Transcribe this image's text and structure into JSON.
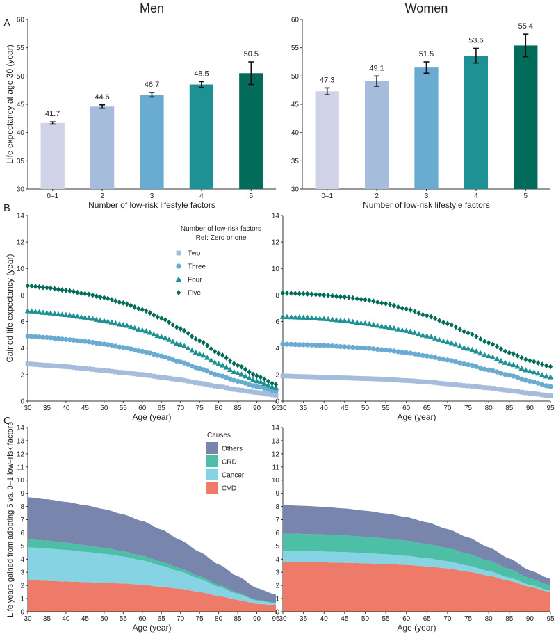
{
  "panel_labels": [
    "A",
    "B",
    "C"
  ],
  "colors": {
    "bars": [
      "#d0d2e8",
      "#a6bcdd",
      "#6aabd2",
      "#1e9195",
      "#036b59"
    ],
    "series": [
      "#a6bcdd",
      "#6aabd2",
      "#1e9195",
      "#036b59"
    ],
    "causes": [
      "#7886ad",
      "#4dbfa7",
      "#86d3e3",
      "#ee7b6a"
    ]
  },
  "chart_data": [
    {
      "type": "bar",
      "id": "A-men",
      "title": "Men",
      "xlabel": "Number of low-risk lifestyle factors",
      "ylabel": "Life expectancy at age 30 (year)",
      "categories": [
        "0–1",
        "2",
        "3",
        "4",
        "5"
      ],
      "values": [
        41.7,
        44.6,
        46.7,
        48.5,
        50.5
      ],
      "value_labels": [
        "41.7",
        "44.6",
        "46.7",
        "48.5",
        "50.5"
      ],
      "ci_low": [
        41.5,
        44.3,
        46.3,
        48.0,
        48.5
      ],
      "ci_high": [
        41.9,
        44.9,
        47.1,
        49.0,
        52.5
      ],
      "ylim": [
        30,
        60
      ],
      "yticks": [
        30,
        35,
        40,
        45,
        50,
        55,
        60
      ]
    },
    {
      "type": "bar",
      "id": "A-women",
      "title": "Women",
      "xlabel": "Number of low-risk lifestyle factors",
      "ylabel": "",
      "categories": [
        "0–1",
        "2",
        "3",
        "4",
        "5"
      ],
      "values": [
        47.3,
        49.1,
        51.5,
        53.6,
        55.4
      ],
      "value_labels": [
        "47.3",
        "49.1",
        "51.5",
        "53.6",
        "55.4"
      ],
      "ci_low": [
        46.7,
        48.2,
        50.5,
        52.3,
        53.4
      ],
      "ci_high": [
        47.9,
        50.0,
        52.5,
        54.9,
        57.4
      ],
      "ylim": [
        30,
        60
      ],
      "yticks": [
        30,
        35,
        40,
        45,
        50,
        55,
        60
      ]
    },
    {
      "type": "scatter",
      "id": "B-men",
      "title": "",
      "xlabel": "Age (year)",
      "ylabel": "Gained life expectancy (year)",
      "xlim": [
        30,
        95
      ],
      "ylim": [
        0,
        14
      ],
      "xticks": [
        30,
        35,
        40,
        45,
        50,
        55,
        60,
        65,
        70,
        75,
        80,
        85,
        90,
        95
      ],
      "yticks": [
        0,
        2,
        4,
        6,
        8,
        10,
        12,
        14
      ],
      "legend_title": "Number of low-risk factors",
      "legend_subtitle": "Ref: Zero or one",
      "x": [
        30,
        35,
        40,
        45,
        50,
        55,
        60,
        65,
        70,
        75,
        80,
        85,
        90,
        95
      ],
      "series": [
        {
          "name": "Two",
          "marker": "square",
          "values": [
            2.8,
            2.7,
            2.6,
            2.45,
            2.3,
            2.15,
            2.0,
            1.8,
            1.6,
            1.35,
            1.1,
            0.85,
            0.65,
            0.45
          ]
        },
        {
          "name": "Three",
          "marker": "circle",
          "values": [
            4.9,
            4.8,
            4.65,
            4.5,
            4.3,
            4.05,
            3.75,
            3.4,
            2.95,
            2.45,
            1.95,
            1.5,
            1.1,
            0.75
          ]
        },
        {
          "name": "Four",
          "marker": "triangle",
          "values": [
            6.8,
            6.65,
            6.5,
            6.3,
            6.05,
            5.75,
            5.35,
            4.85,
            4.25,
            3.55,
            2.8,
            2.1,
            1.5,
            1.0
          ]
        },
        {
          "name": "Five",
          "marker": "diamond",
          "values": [
            8.7,
            8.55,
            8.35,
            8.1,
            7.8,
            7.4,
            6.9,
            6.25,
            5.45,
            4.55,
            3.6,
            2.7,
            1.9,
            1.25
          ]
        }
      ]
    },
    {
      "type": "scatter",
      "id": "B-women",
      "title": "",
      "xlabel": "Age (year)",
      "ylabel": "",
      "xlim": [
        30,
        95
      ],
      "ylim": [
        0,
        14
      ],
      "xticks": [
        30,
        35,
        40,
        45,
        50,
        55,
        60,
        65,
        70,
        75,
        80,
        85,
        90,
        95
      ],
      "yticks": [
        0,
        2,
        4,
        6,
        8,
        10,
        12,
        14
      ],
      "x": [
        30,
        35,
        40,
        45,
        50,
        55,
        60,
        65,
        70,
        75,
        80,
        85,
        90,
        95
      ],
      "series": [
        {
          "name": "Two",
          "marker": "square",
          "values": [
            1.9,
            1.85,
            1.8,
            1.75,
            1.7,
            1.65,
            1.55,
            1.45,
            1.3,
            1.15,
            1.0,
            0.8,
            0.6,
            0.4
          ]
        },
        {
          "name": "Three",
          "marker": "circle",
          "values": [
            4.3,
            4.25,
            4.2,
            4.1,
            4.0,
            3.85,
            3.65,
            3.4,
            3.1,
            2.75,
            2.35,
            1.95,
            1.5,
            1.1
          ]
        },
        {
          "name": "Four",
          "marker": "triangle",
          "values": [
            6.35,
            6.3,
            6.2,
            6.05,
            5.85,
            5.6,
            5.3,
            4.9,
            4.45,
            3.95,
            3.4,
            2.8,
            2.25,
            1.8
          ]
        },
        {
          "name": "Five",
          "marker": "diamond",
          "values": [
            8.15,
            8.1,
            8.0,
            7.85,
            7.65,
            7.35,
            6.95,
            6.45,
            5.85,
            5.15,
            4.4,
            3.65,
            3.05,
            2.6
          ]
        }
      ]
    },
    {
      "type": "area",
      "id": "C-men",
      "title": "",
      "xlabel": "Age (year)",
      "ylabel": "Life years gained from adopting 5 vs. 0–1 low–risk factors",
      "xlim": [
        30,
        95
      ],
      "ylim": [
        0,
        14
      ],
      "xticks": [
        30,
        35,
        40,
        45,
        50,
        55,
        60,
        65,
        70,
        75,
        80,
        85,
        90,
        95
      ],
      "yticks": [
        0,
        1,
        2,
        3,
        4,
        5,
        6,
        7,
        8,
        9,
        10,
        11,
        12,
        13,
        14
      ],
      "legend_title": "Causes",
      "stacked": true,
      "x": [
        30,
        35,
        40,
        45,
        50,
        55,
        60,
        65,
        70,
        75,
        80,
        85,
        90,
        95
      ],
      "series": [
        {
          "name": "CVD",
          "values": [
            2.4,
            2.35,
            2.3,
            2.25,
            2.2,
            2.15,
            2.05,
            1.9,
            1.75,
            1.5,
            1.2,
            0.9,
            0.6,
            0.5
          ]
        },
        {
          "name": "Cancer",
          "values": [
            2.5,
            2.45,
            2.4,
            2.3,
            2.2,
            2.05,
            1.85,
            1.6,
            1.3,
            1.0,
            0.7,
            0.45,
            0.25,
            0.15
          ]
        },
        {
          "name": "CRD",
          "values": [
            0.6,
            0.6,
            0.55,
            0.5,
            0.45,
            0.4,
            0.35,
            0.3,
            0.25,
            0.2,
            0.15,
            0.1,
            0.05,
            0.05
          ]
        },
        {
          "name": "Others",
          "values": [
            3.2,
            3.15,
            3.1,
            3.05,
            2.95,
            2.8,
            2.65,
            2.45,
            2.15,
            1.85,
            1.55,
            1.25,
            0.9,
            0.6
          ]
        }
      ]
    },
    {
      "type": "area",
      "id": "C-women",
      "title": "",
      "xlabel": "Age (year)",
      "ylabel": "",
      "xlim": [
        30,
        95
      ],
      "ylim": [
        0,
        14
      ],
      "xticks": [
        30,
        35,
        40,
        45,
        50,
        55,
        60,
        65,
        70,
        75,
        80,
        85,
        90,
        95
      ],
      "yticks": [
        0,
        1,
        2,
        3,
        4,
        5,
        6,
        7,
        8,
        9,
        10,
        11,
        12,
        13,
        14
      ],
      "stacked": true,
      "x": [
        30,
        35,
        40,
        45,
        50,
        55,
        60,
        65,
        70,
        75,
        80,
        85,
        90,
        95
      ],
      "series": [
        {
          "name": "CVD",
          "values": [
            3.8,
            3.78,
            3.75,
            3.72,
            3.68,
            3.63,
            3.56,
            3.45,
            3.3,
            3.05,
            2.75,
            2.35,
            1.9,
            1.5
          ]
        },
        {
          "name": "Cancer",
          "values": [
            0.85,
            0.84,
            0.83,
            0.81,
            0.78,
            0.74,
            0.69,
            0.62,
            0.54,
            0.45,
            0.35,
            0.25,
            0.15,
            0.1
          ]
        },
        {
          "name": "CRD",
          "values": [
            1.3,
            1.3,
            1.29,
            1.27,
            1.24,
            1.2,
            1.15,
            1.08,
            1.0,
            0.9,
            0.78,
            0.65,
            0.5,
            0.4
          ]
        },
        {
          "name": "Others",
          "values": [
            2.15,
            2.13,
            2.1,
            2.05,
            1.98,
            1.9,
            1.8,
            1.65,
            1.45,
            1.25,
            1.02,
            0.8,
            0.6,
            0.5
          ]
        }
      ]
    }
  ]
}
